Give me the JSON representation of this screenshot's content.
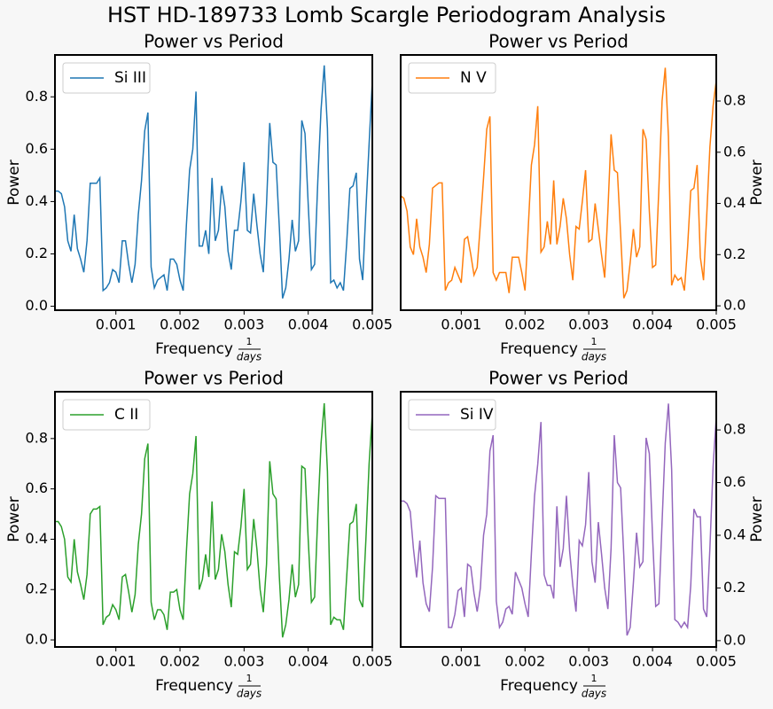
{
  "title": "HST HD-189733 Lomb Scargle Periodogram Analysis",
  "chart_data": [
    {
      "type": "line",
      "title": "Power vs Period",
      "xlabel": "Frequency",
      "xlabel_fraction": {
        "numerator": "1",
        "denominator": "days"
      },
      "ylabel": "Power",
      "y_axis_side": "left",
      "legend": "upper left",
      "xlim": [
        5e-05,
        0.005
      ],
      "xticks": [
        0.001,
        0.002,
        0.003,
        0.004,
        0.005
      ],
      "ylim": [
        -0.015,
        0.96
      ],
      "yticks": [
        {
          "value": 0,
          "label": "0.0"
        },
        0.2,
        0.4,
        0.6,
        0.8
      ],
      "x": [
        5e-05,
        0.0001,
        0.00015,
        0.0002,
        0.00025,
        0.0003,
        0.00035,
        0.0004,
        0.00045,
        0.0005,
        0.00055,
        0.0006,
        0.00065,
        0.0007,
        0.00075,
        0.0008,
        0.00085,
        0.0009,
        0.00095,
        0.001,
        0.00105,
        0.0011,
        0.00115,
        0.0012,
        0.00125,
        0.0013,
        0.00135,
        0.0014,
        0.00145,
        0.0015,
        0.00155,
        0.0016,
        0.00165,
        0.0017,
        0.00175,
        0.0018,
        0.00185,
        0.0019,
        0.00195,
        0.002,
        0.00205,
        0.0021,
        0.00215,
        0.0022,
        0.00225,
        0.0023,
        0.00235,
        0.0024,
        0.00245,
        0.0025,
        0.00255,
        0.0026,
        0.00265,
        0.0027,
        0.00275,
        0.0028,
        0.00285,
        0.0029,
        0.00295,
        0.003,
        0.00305,
        0.0031,
        0.00315,
        0.0032,
        0.00325,
        0.0033,
        0.00335,
        0.0034,
        0.00345,
        0.0035,
        0.00355,
        0.0036,
        0.00365,
        0.0037,
        0.00375,
        0.0038,
        0.00385,
        0.0039,
        0.00395,
        0.004,
        0.00405,
        0.0041,
        0.00415,
        0.0042,
        0.00425,
        0.0043,
        0.00435,
        0.0044,
        0.00445,
        0.0045,
        0.00455,
        0.0046,
        0.00465,
        0.0047,
        0.00475,
        0.0048,
        0.00485,
        0.0049,
        0.00495,
        0.005
      ],
      "series": [
        {
          "name": "Si III",
          "color": "#1f77b4",
          "values": [
            0.44,
            0.44,
            0.43,
            0.38,
            0.25,
            0.21,
            0.35,
            0.22,
            0.18,
            0.13,
            0.25,
            0.47,
            0.47,
            0.47,
            0.49,
            0.06,
            0.07,
            0.09,
            0.14,
            0.13,
            0.09,
            0.25,
            0.25,
            0.16,
            0.09,
            0.16,
            0.35,
            0.48,
            0.67,
            0.74,
            0.15,
            0.07,
            0.1,
            0.11,
            0.12,
            0.06,
            0.18,
            0.18,
            0.16,
            0.1,
            0.06,
            0.31,
            0.52,
            0.6,
            0.82,
            0.23,
            0.23,
            0.29,
            0.2,
            0.49,
            0.25,
            0.29,
            0.46,
            0.38,
            0.21,
            0.14,
            0.29,
            0.29,
            0.4,
            0.55,
            0.29,
            0.28,
            0.43,
            0.31,
            0.2,
            0.13,
            0.39,
            0.7,
            0.55,
            0.54,
            0.3,
            0.03,
            0.07,
            0.18,
            0.33,
            0.21,
            0.25,
            0.71,
            0.66,
            0.39,
            0.14,
            0.16,
            0.48,
            0.75,
            0.92,
            0.68,
            0.09,
            0.1,
            0.07,
            0.09,
            0.06,
            0.24,
            0.45,
            0.46,
            0.51,
            0.18,
            0.1,
            0.37,
            0.62,
            0.86
          ]
        }
      ]
    },
    {
      "type": "line",
      "title": "Power vs Period",
      "xlabel": "Frequency",
      "xlabel_fraction": {
        "numerator": "1",
        "denominator": "days"
      },
      "ylabel": "Power",
      "y_axis_side": "right",
      "legend": "upper left",
      "xlim": [
        5e-05,
        0.005
      ],
      "xticks": [
        0.001,
        0.002,
        0.003,
        0.004,
        0.005
      ],
      "ylim": [
        -0.017,
        0.98
      ],
      "yticks": [
        {
          "value": 0,
          "label": "0.0"
        },
        0.2,
        0.4,
        0.6,
        0.8
      ],
      "x": [
        5e-05,
        0.0001,
        0.00015,
        0.0002,
        0.00025,
        0.0003,
        0.00035,
        0.0004,
        0.00045,
        0.0005,
        0.00055,
        0.0006,
        0.00065,
        0.0007,
        0.00075,
        0.0008,
        0.00085,
        0.0009,
        0.00095,
        0.001,
        0.00105,
        0.0011,
        0.00115,
        0.0012,
        0.00125,
        0.0013,
        0.00135,
        0.0014,
        0.00145,
        0.0015,
        0.00155,
        0.0016,
        0.00165,
        0.0017,
        0.00175,
        0.0018,
        0.00185,
        0.0019,
        0.00195,
        0.002,
        0.00205,
        0.0021,
        0.00215,
        0.0022,
        0.00225,
        0.0023,
        0.00235,
        0.0024,
        0.00245,
        0.0025,
        0.00255,
        0.0026,
        0.00265,
        0.0027,
        0.00275,
        0.0028,
        0.00285,
        0.0029,
        0.00295,
        0.003,
        0.00305,
        0.0031,
        0.00315,
        0.0032,
        0.00325,
        0.0033,
        0.00335,
        0.0034,
        0.00345,
        0.0035,
        0.00355,
        0.0036,
        0.00365,
        0.0037,
        0.00375,
        0.0038,
        0.00385,
        0.0039,
        0.00395,
        0.004,
        0.00405,
        0.0041,
        0.00415,
        0.0042,
        0.00425,
        0.0043,
        0.00435,
        0.0044,
        0.00445,
        0.0045,
        0.00455,
        0.0046,
        0.00465,
        0.0047,
        0.00475,
        0.0048,
        0.00485,
        0.0049,
        0.00495,
        0.005
      ],
      "series": [
        {
          "name": "N V",
          "color": "#ff7f0e",
          "values": [
            0.43,
            0.42,
            0.37,
            0.23,
            0.2,
            0.34,
            0.23,
            0.19,
            0.13,
            0.24,
            0.46,
            0.47,
            0.48,
            0.48,
            0.06,
            0.09,
            0.1,
            0.15,
            0.12,
            0.09,
            0.26,
            0.27,
            0.2,
            0.12,
            0.15,
            0.32,
            0.5,
            0.69,
            0.74,
            0.13,
            0.1,
            0.13,
            0.13,
            0.13,
            0.05,
            0.19,
            0.19,
            0.19,
            0.13,
            0.06,
            0.3,
            0.55,
            0.63,
            0.78,
            0.21,
            0.23,
            0.33,
            0.24,
            0.49,
            0.24,
            0.31,
            0.42,
            0.34,
            0.2,
            0.1,
            0.31,
            0.3,
            0.41,
            0.53,
            0.25,
            0.26,
            0.4,
            0.3,
            0.2,
            0.11,
            0.37,
            0.67,
            0.53,
            0.52,
            0.28,
            0.03,
            0.06,
            0.17,
            0.3,
            0.19,
            0.23,
            0.69,
            0.65,
            0.37,
            0.15,
            0.16,
            0.46,
            0.8,
            0.93,
            0.66,
            0.08,
            0.12,
            0.1,
            0.11,
            0.06,
            0.23,
            0.45,
            0.46,
            0.55,
            0.19,
            0.1,
            0.35,
            0.62,
            0.78,
            0.88
          ]
        }
      ]
    },
    {
      "type": "line",
      "title": "Power vs Period",
      "xlabel": "Frequency",
      "xlabel_fraction": {
        "numerator": "1",
        "denominator": "days"
      },
      "ylabel": "Power",
      "y_axis_side": "left",
      "legend": "upper left",
      "xlim": [
        5e-05,
        0.005
      ],
      "xticks": [
        0.001,
        0.002,
        0.003,
        0.004,
        0.005
      ],
      "ylim": [
        -0.028,
        0.986
      ],
      "yticks": [
        {
          "value": 0,
          "label": "0.0"
        },
        0.2,
        0.4,
        0.6,
        0.8
      ],
      "x": [
        5e-05,
        0.0001,
        0.00015,
        0.0002,
        0.00025,
        0.0003,
        0.00035,
        0.0004,
        0.00045,
        0.0005,
        0.00055,
        0.0006,
        0.00065,
        0.0007,
        0.00075,
        0.0008,
        0.00085,
        0.0009,
        0.00095,
        0.001,
        0.00105,
        0.0011,
        0.00115,
        0.0012,
        0.00125,
        0.0013,
        0.00135,
        0.0014,
        0.00145,
        0.0015,
        0.00155,
        0.0016,
        0.00165,
        0.0017,
        0.00175,
        0.0018,
        0.00185,
        0.0019,
        0.00195,
        0.002,
        0.00205,
        0.0021,
        0.00215,
        0.0022,
        0.00225,
        0.0023,
        0.00235,
        0.0024,
        0.00245,
        0.0025,
        0.00255,
        0.0026,
        0.00265,
        0.0027,
        0.00275,
        0.0028,
        0.00285,
        0.0029,
        0.00295,
        0.003,
        0.00305,
        0.0031,
        0.00315,
        0.0032,
        0.00325,
        0.0033,
        0.00335,
        0.0034,
        0.00345,
        0.0035,
        0.00355,
        0.0036,
        0.00365,
        0.0037,
        0.00375,
        0.0038,
        0.00385,
        0.0039,
        0.00395,
        0.004,
        0.00405,
        0.0041,
        0.00415,
        0.0042,
        0.00425,
        0.0043,
        0.00435,
        0.0044,
        0.00445,
        0.0045,
        0.00455,
        0.0046,
        0.00465,
        0.0047,
        0.00475,
        0.0048,
        0.00485,
        0.0049,
        0.00495,
        0.005
      ],
      "series": [
        {
          "name": "C II",
          "color": "#2ca02c",
          "values": [
            0.47,
            0.47,
            0.45,
            0.4,
            0.25,
            0.23,
            0.4,
            0.27,
            0.22,
            0.16,
            0.26,
            0.5,
            0.52,
            0.52,
            0.53,
            0.06,
            0.09,
            0.1,
            0.14,
            0.12,
            0.08,
            0.25,
            0.26,
            0.19,
            0.11,
            0.18,
            0.38,
            0.5,
            0.72,
            0.78,
            0.15,
            0.08,
            0.12,
            0.12,
            0.1,
            0.04,
            0.19,
            0.19,
            0.2,
            0.12,
            0.08,
            0.35,
            0.58,
            0.66,
            0.81,
            0.2,
            0.24,
            0.34,
            0.25,
            0.55,
            0.24,
            0.28,
            0.42,
            0.35,
            0.22,
            0.13,
            0.35,
            0.34,
            0.45,
            0.6,
            0.28,
            0.3,
            0.48,
            0.36,
            0.2,
            0.11,
            0.3,
            0.71,
            0.58,
            0.56,
            0.25,
            0.01,
            0.06,
            0.16,
            0.3,
            0.17,
            0.22,
            0.69,
            0.68,
            0.4,
            0.15,
            0.17,
            0.5,
            0.78,
            0.94,
            0.67,
            0.06,
            0.09,
            0.08,
            0.08,
            0.04,
            0.25,
            0.46,
            0.47,
            0.54,
            0.16,
            0.13,
            0.4,
            0.7,
            0.9
          ]
        }
      ]
    },
    {
      "type": "line",
      "title": "Power vs Period",
      "xlabel": "Frequency",
      "xlabel_fraction": {
        "numerator": "1",
        "denominator": "days"
      },
      "ylabel": "Power",
      "y_axis_side": "right",
      "legend": "upper left",
      "xlim": [
        5e-05,
        0.005
      ],
      "xticks": [
        0.001,
        0.002,
        0.003,
        0.004,
        0.005
      ],
      "ylim": [
        -0.024,
        0.945
      ],
      "yticks": [
        {
          "value": 0,
          "label": "0.0"
        },
        0.2,
        0.4,
        0.6,
        0.8
      ],
      "x": [
        5e-05,
        0.0001,
        0.00015,
        0.0002,
        0.00025,
        0.0003,
        0.00035,
        0.0004,
        0.00045,
        0.0005,
        0.00055,
        0.0006,
        0.00065,
        0.0007,
        0.00075,
        0.0008,
        0.00085,
        0.0009,
        0.00095,
        0.001,
        0.00105,
        0.0011,
        0.00115,
        0.0012,
        0.00125,
        0.0013,
        0.00135,
        0.0014,
        0.00145,
        0.0015,
        0.00155,
        0.0016,
        0.00165,
        0.0017,
        0.00175,
        0.0018,
        0.00185,
        0.0019,
        0.00195,
        0.002,
        0.00205,
        0.0021,
        0.00215,
        0.0022,
        0.00225,
        0.0023,
        0.00235,
        0.0024,
        0.00245,
        0.0025,
        0.00255,
        0.0026,
        0.00265,
        0.0027,
        0.00275,
        0.0028,
        0.00285,
        0.0029,
        0.00295,
        0.003,
        0.00305,
        0.0031,
        0.00315,
        0.0032,
        0.00325,
        0.0033,
        0.00335,
        0.0034,
        0.00345,
        0.0035,
        0.00355,
        0.0036,
        0.00365,
        0.0037,
        0.00375,
        0.0038,
        0.00385,
        0.0039,
        0.00395,
        0.004,
        0.00405,
        0.0041,
        0.00415,
        0.0042,
        0.00425,
        0.0043,
        0.00435,
        0.0044,
        0.00445,
        0.0045,
        0.00455,
        0.0046,
        0.00465,
        0.0047,
        0.00475,
        0.0048,
        0.00485,
        0.0049,
        0.00495,
        0.005
      ],
      "series": [
        {
          "name": "Si IV",
          "color": "#9467bd",
          "values": [
            0.53,
            0.53,
            0.52,
            0.49,
            0.35,
            0.24,
            0.38,
            0.22,
            0.14,
            0.11,
            0.28,
            0.55,
            0.54,
            0.54,
            0.54,
            0.05,
            0.05,
            0.1,
            0.19,
            0.2,
            0.09,
            0.29,
            0.28,
            0.18,
            0.11,
            0.2,
            0.4,
            0.48,
            0.72,
            0.78,
            0.15,
            0.05,
            0.07,
            0.12,
            0.13,
            0.1,
            0.26,
            0.23,
            0.2,
            0.14,
            0.09,
            0.33,
            0.55,
            0.67,
            0.83,
            0.25,
            0.21,
            0.21,
            0.16,
            0.51,
            0.28,
            0.35,
            0.55,
            0.34,
            0.21,
            0.11,
            0.38,
            0.36,
            0.44,
            0.64,
            0.3,
            0.22,
            0.45,
            0.33,
            0.2,
            0.12,
            0.35,
            0.78,
            0.6,
            0.58,
            0.32,
            0.02,
            0.05,
            0.22,
            0.41,
            0.28,
            0.3,
            0.77,
            0.71,
            0.4,
            0.13,
            0.14,
            0.45,
            0.75,
            0.9,
            0.65,
            0.08,
            0.07,
            0.05,
            0.07,
            0.05,
            0.21,
            0.5,
            0.47,
            0.47,
            0.12,
            0.09,
            0.35,
            0.66,
            0.85
          ]
        }
      ]
    }
  ]
}
